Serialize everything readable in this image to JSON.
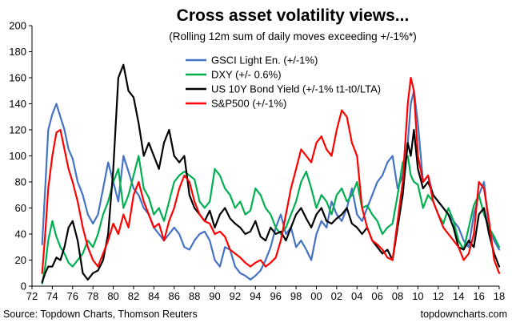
{
  "chart_data": {
    "type": "line",
    "title": "Cross asset volatility views...",
    "subtitle": "(Rolling 12m sum of daily moves exceeding +/-1%*)",
    "xlabel": "",
    "ylabel": "",
    "xlim": [
      1972,
      2018
    ],
    "ylim": [
      0,
      200
    ],
    "yticks": [
      0,
      20,
      40,
      60,
      80,
      100,
      120,
      140,
      160,
      180,
      200
    ],
    "xtick_labels": [
      "72",
      "74",
      "76",
      "78",
      "80",
      "82",
      "84",
      "86",
      "88",
      "90",
      "92",
      "94",
      "96",
      "98",
      "00",
      "02",
      "04",
      "06",
      "08",
      "10",
      "12",
      "14",
      "16",
      "18"
    ],
    "grid": false,
    "legend_position": "top-center",
    "series": [
      {
        "name": "GSCI Light En. (+/-1%)",
        "color": "#4472C4",
        "x": [
          1973,
          1973.3,
          1973.6,
          1974,
          1974.4,
          1974.8,
          1975.2,
          1975.6,
          1976,
          1976.5,
          1977,
          1977.5,
          1978,
          1978.5,
          1979,
          1979.5,
          1980,
          1980.5,
          1981,
          1981.5,
          1982,
          1982.5,
          1983,
          1983.5,
          1984,
          1984.5,
          1985,
          1985.5,
          1986,
          1986.5,
          1987,
          1987.5,
          1988,
          1988.5,
          1989,
          1989.5,
          1990,
          1990.5,
          1991,
          1991.5,
          1992,
          1992.5,
          1993,
          1993.5,
          1994,
          1994.5,
          1995,
          1995.5,
          1996,
          1996.5,
          1997,
          1997.5,
          1998,
          1998.5,
          1999,
          1999.5,
          2000,
          2000.5,
          2001,
          2001.5,
          2002,
          2002.5,
          2003,
          2003.5,
          2004,
          2004.5,
          2005,
          2005.5,
          2006,
          2006.5,
          2007,
          2007.5,
          2008,
          2008.5,
          2009,
          2009.3,
          2009.6,
          2010,
          2010.5,
          2011,
          2011.5,
          2012,
          2012.5,
          2013,
          2013.5,
          2014,
          2014.5,
          2015,
          2015.5,
          2016,
          2016.5,
          2017,
          2017.5,
          2018
        ],
        "values": [
          32,
          75,
          120,
          132,
          140,
          130,
          120,
          105,
          98,
          80,
          70,
          55,
          48,
          55,
          75,
          95,
          80,
          65,
          100,
          88,
          75,
          70,
          60,
          55,
          45,
          40,
          35,
          40,
          45,
          40,
          30,
          28,
          35,
          40,
          42,
          35,
          20,
          15,
          30,
          28,
          15,
          10,
          8,
          5,
          8,
          12,
          20,
          30,
          45,
          55,
          40,
          45,
          30,
          35,
          28,
          20,
          40,
          50,
          45,
          65,
          55,
          50,
          60,
          75,
          55,
          50,
          60,
          70,
          80,
          85,
          95,
          100,
          75,
          85,
          110,
          140,
          150,
          125,
          80,
          85,
          70,
          65,
          60,
          55,
          50,
          45,
          35,
          30,
          55,
          70,
          80,
          45,
          35,
          28
        ]
      },
      {
        "name": "DXY (+/- 0.6%)",
        "color": "#00B050",
        "x": [
          1973,
          1973.3,
          1973.6,
          1974,
          1974.4,
          1974.8,
          1975.2,
          1975.6,
          1976,
          1976.5,
          1977,
          1977.5,
          1978,
          1978.5,
          1979,
          1979.5,
          1980,
          1980.5,
          1981,
          1981.5,
          1982,
          1982.5,
          1983,
          1983.5,
          1984,
          1984.5,
          1985,
          1985.5,
          1986,
          1986.5,
          1987,
          1987.5,
          1988,
          1988.5,
          1989,
          1989.5,
          1990,
          1990.5,
          1991,
          1991.5,
          1992,
          1992.5,
          1993,
          1993.5,
          1994,
          1994.5,
          1995,
          1995.5,
          1996,
          1996.5,
          1997,
          1997.5,
          1998,
          1998.5,
          1999,
          1999.5,
          2000,
          2000.5,
          2001,
          2001.5,
          2002,
          2002.5,
          2003,
          2003.5,
          2004,
          2004.5,
          2005,
          2005.5,
          2006,
          2006.5,
          2007,
          2007.5,
          2008,
          2008.5,
          2009,
          2009.3,
          2009.6,
          2010,
          2010.5,
          2011,
          2011.5,
          2012,
          2012.5,
          2013,
          2013.5,
          2014,
          2014.5,
          2015,
          2015.5,
          2016,
          2016.5,
          2017,
          2017.5,
          2018
        ],
        "values": [
          2,
          15,
          35,
          50,
          38,
          30,
          25,
          18,
          15,
          20,
          25,
          35,
          30,
          40,
          55,
          65,
          80,
          90,
          60,
          70,
          85,
          100,
          75,
          68,
          55,
          60,
          50,
          65,
          80,
          85,
          88,
          85,
          82,
          65,
          60,
          65,
          90,
          85,
          75,
          70,
          60,
          65,
          55,
          58,
          75,
          70,
          60,
          55,
          45,
          40,
          45,
          55,
          65,
          80,
          88,
          75,
          60,
          70,
          65,
          55,
          70,
          75,
          65,
          70,
          80,
          60,
          62,
          55,
          50,
          40,
          45,
          48,
          70,
          95,
          100,
          85,
          80,
          78,
          60,
          70,
          65,
          55,
          48,
          60,
          50,
          35,
          28,
          45,
          62,
          70,
          55,
          45,
          38,
          30
        ]
      },
      {
        "name": "US 10Y Bond Yield (+/-1%  t1-t0/LTA)",
        "color": "#000000",
        "x": [
          1973,
          1973.3,
          1973.6,
          1974,
          1974.4,
          1974.8,
          1975.2,
          1975.6,
          1976,
          1976.5,
          1977,
          1977.5,
          1978,
          1978.5,
          1979,
          1979.5,
          1980,
          1980.5,
          1981,
          1981.5,
          1982,
          1982.5,
          1983,
          1983.5,
          1984,
          1984.5,
          1985,
          1985.5,
          1986,
          1986.5,
          1987,
          1987.5,
          1988,
          1988.5,
          1989,
          1989.5,
          1990,
          1990.5,
          1991,
          1991.5,
          1992,
          1992.5,
          1993,
          1993.5,
          1994,
          1994.5,
          1995,
          1995.5,
          1996,
          1996.5,
          1997,
          1997.5,
          1998,
          1998.5,
          1999,
          1999.5,
          2000,
          2000.5,
          2001,
          2001.5,
          2002,
          2002.5,
          2003,
          2003.5,
          2004,
          2004.5,
          2005,
          2005.5,
          2006,
          2006.5,
          2007,
          2007.5,
          2008,
          2008.5,
          2009,
          2009.3,
          2009.6,
          2010,
          2010.5,
          2011,
          2011.5,
          2012,
          2012.5,
          2013,
          2013.5,
          2014,
          2014.5,
          2015,
          2015.5,
          2016,
          2016.5,
          2017,
          2017.5,
          2018
        ],
        "values": [
          3,
          10,
          15,
          15,
          22,
          20,
          30,
          45,
          50,
          35,
          10,
          5,
          10,
          12,
          20,
          40,
          90,
          160,
          170,
          150,
          145,
          125,
          100,
          110,
          100,
          90,
          110,
          120,
          100,
          95,
          100,
          70,
          60,
          55,
          50,
          58,
          45,
          55,
          60,
          52,
          48,
          45,
          40,
          42,
          50,
          38,
          35,
          45,
          40,
          42,
          35,
          45,
          55,
          60,
          52,
          45,
          55,
          60,
          50,
          48,
          52,
          55,
          60,
          48,
          45,
          40,
          45,
          35,
          30,
          25,
          28,
          20,
          45,
          70,
          110,
          100,
          120,
          90,
          75,
          80,
          70,
          65,
          60,
          55,
          45,
          30,
          28,
          35,
          30,
          55,
          60,
          40,
          25,
          15
        ]
      },
      {
        "name": "S&P500 (+/-1%)",
        "color": "#FF0000",
        "x": [
          1973,
          1973.3,
          1973.6,
          1974,
          1974.4,
          1974.8,
          1975.2,
          1975.6,
          1976,
          1976.5,
          1977,
          1977.5,
          1978,
          1978.5,
          1979,
          1979.5,
          1980,
          1980.5,
          1981,
          1981.5,
          1982,
          1982.5,
          1983,
          1983.5,
          1984,
          1984.5,
          1985,
          1985.5,
          1986,
          1986.5,
          1987,
          1987.5,
          1988,
          1988.5,
          1989,
          1989.5,
          1990,
          1990.5,
          1991,
          1991.5,
          1992,
          1992.5,
          1993,
          1993.5,
          1994,
          1994.5,
          1995,
          1995.5,
          1996,
          1996.5,
          1997,
          1997.5,
          1998,
          1998.5,
          1999,
          1999.5,
          2000,
          2000.5,
          2001,
          2001.5,
          2002,
          2002.5,
          2003,
          2003.5,
          2004,
          2004.5,
          2005,
          2005.5,
          2006,
          2006.5,
          2007,
          2007.5,
          2008,
          2008.5,
          2009,
          2009.3,
          2009.6,
          2010,
          2010.5,
          2011,
          2011.5,
          2012,
          2012.5,
          2013,
          2013.5,
          2014,
          2014.5,
          2015,
          2015.5,
          2016,
          2016.5,
          2017,
          2017.5,
          2018
        ],
        "values": [
          10,
          40,
          75,
          100,
          118,
          120,
          105,
          90,
          80,
          65,
          45,
          30,
          20,
          15,
          25,
          35,
          48,
          40,
          55,
          45,
          70,
          80,
          65,
          55,
          45,
          48,
          35,
          50,
          60,
          75,
          85,
          80,
          65,
          55,
          50,
          48,
          40,
          42,
          38,
          28,
          25,
          22,
          18,
          15,
          18,
          20,
          15,
          18,
          22,
          35,
          55,
          75,
          90,
          105,
          100,
          95,
          110,
          115,
          105,
          100,
          120,
          135,
          130,
          110,
          100,
          60,
          45,
          35,
          32,
          28,
          22,
          20,
          50,
          80,
          140,
          160,
          150,
          100,
          80,
          85,
          65,
          55,
          45,
          40,
          35,
          30,
          20,
          25,
          40,
          80,
          75,
          50,
          20,
          10
        ]
      }
    ]
  },
  "footer": {
    "source": "Source: Topdown Charts, Thomson Reuters",
    "brand": "topdowncharts.com"
  }
}
